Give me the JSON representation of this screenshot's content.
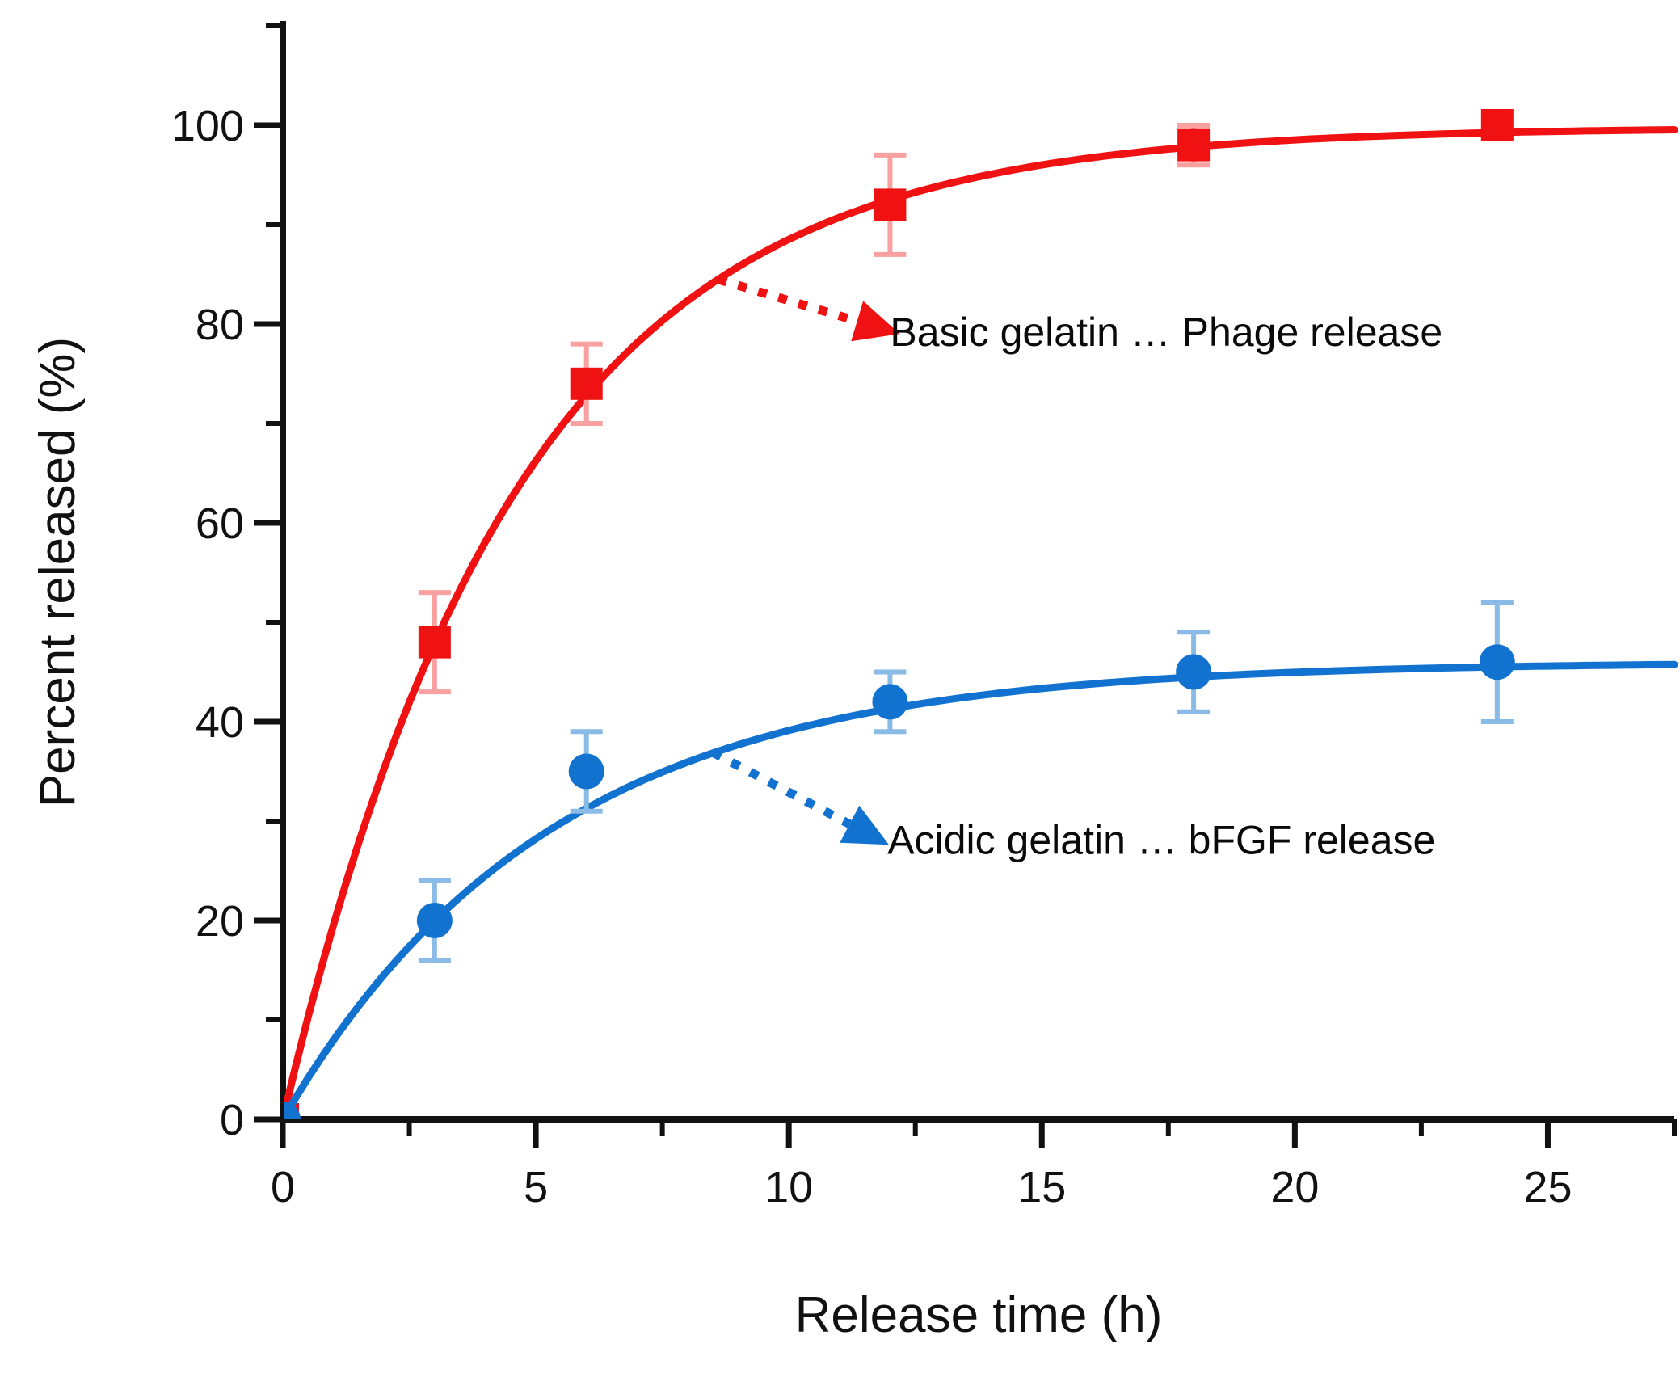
{
  "page": {
    "background": "#ffffff"
  },
  "chart_data": {
    "type": "line",
    "title": "",
    "xlabel": "Release time (h)",
    "ylabel": "Percent released (%)",
    "xlim": [
      0,
      27.5
    ],
    "ylim": [
      0,
      110
    ],
    "x_major_ticks": [
      0,
      5,
      10,
      15,
      20,
      25
    ],
    "x_minor_ticks": [
      2.5,
      7.5,
      12.5,
      17.5,
      22.5,
      27.5
    ],
    "y_major_ticks": [
      0,
      20,
      40,
      60,
      80,
      100
    ],
    "y_minor_ticks": [
      10,
      30,
      50,
      70,
      90,
      110
    ],
    "grid": false,
    "legend_position": "none (inline arrow annotations)",
    "axis_color": "#111111",
    "text_color": "#111111",
    "series": [
      {
        "id": "basic",
        "name": "Basic gelatin … Phage release",
        "marker": "square",
        "color": "#f01212",
        "error_color": "#f9a0a0",
        "x": [
          0,
          3,
          6,
          12,
          18,
          24
        ],
        "y": [
          0,
          48,
          74,
          92,
          98,
          100
        ],
        "yerr": [
          0,
          5,
          4,
          5,
          2,
          0
        ],
        "fit_curve": {
          "model": "A*(1-exp(-k*t))",
          "A": 99.8,
          "k": 0.218
        }
      },
      {
        "id": "acidic",
        "name": "Acidic gelatin … bFGF release",
        "marker": "circle",
        "color": "#1272cf",
        "error_color": "#8abae6",
        "x": [
          0,
          3,
          6,
          12,
          18,
          24
        ],
        "y": [
          0,
          20,
          35,
          42,
          45,
          46
        ],
        "yerr": [
          0,
          4,
          4,
          3,
          4,
          6
        ],
        "fit_curve": {
          "model": "A*(1-exp(-k*t))",
          "A": 46.0,
          "k": 0.19
        }
      }
    ],
    "annotations": [
      {
        "series_id": "basic",
        "text": "Basic gelatin … Phage release",
        "text_color": "#0a0a0a",
        "arrow_style": "dotted",
        "arrow_from": {
          "x": 8.6,
          "y": 84.5
        },
        "arrow_to": {
          "x": 11.35,
          "y": 80.3
        },
        "text_at": {
          "x": 12.0,
          "y": 79.2
        }
      },
      {
        "series_id": "acidic",
        "text": "Acidic gelatin … bFGF release",
        "text_color": "#0a0a0a",
        "arrow_style": "dotted",
        "arrow_from": {
          "x": 8.5,
          "y": 36.9
        },
        "arrow_to": {
          "x": 11.2,
          "y": 29.7
        },
        "text_at": {
          "x": 11.95,
          "y": 28.1
        }
      }
    ]
  }
}
